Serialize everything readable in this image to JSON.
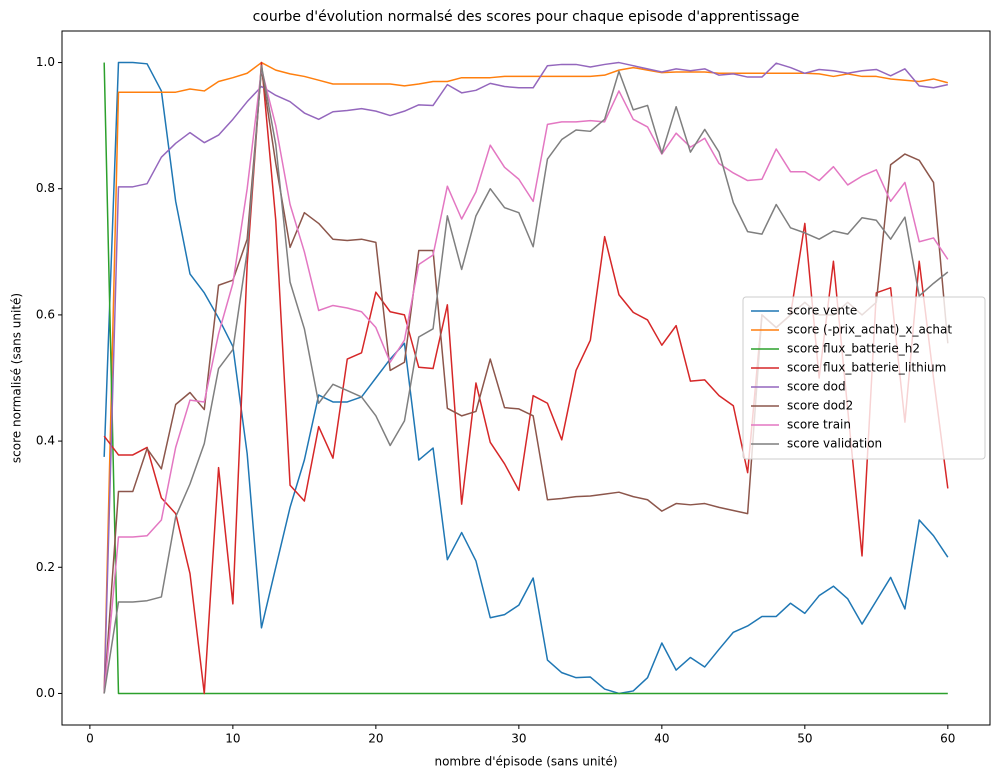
{
  "chart_data": {
    "type": "line",
    "title": "courbe d'évolution normalsé des scores pour chaque episode d'apprentissage",
    "xlabel": "nombre d'épisode (sans unité)",
    "ylabel": "score normalisé (sans unité)",
    "x": [
      1,
      2,
      3,
      4,
      5,
      6,
      7,
      8,
      9,
      10,
      11,
      12,
      13,
      14,
      15,
      16,
      17,
      18,
      19,
      20,
      21,
      22,
      23,
      24,
      25,
      26,
      27,
      28,
      29,
      30,
      31,
      32,
      33,
      34,
      35,
      36,
      37,
      38,
      39,
      40,
      41,
      42,
      43,
      44,
      45,
      46,
      47,
      48,
      49,
      50,
      51,
      52,
      53,
      54,
      55,
      56,
      57,
      58,
      59,
      60
    ],
    "xlim": [
      -1.95,
      62.95
    ],
    "xticks": [
      0,
      10,
      20,
      30,
      40,
      50,
      60
    ],
    "ylim": [
      -0.05,
      1.05
    ],
    "yticks": [
      {
        "value": 0,
        "label": "0.0"
      },
      0.2,
      0.4,
      0.6,
      0.8,
      {
        "value": 1,
        "label": "1.0"
      }
    ],
    "legend": "center right",
    "grid": false,
    "series": [
      {
        "name": "score vente",
        "color": "#1f77b4",
        "values": [
          0.375,
          1.0,
          1.0,
          0.998,
          0.955,
          0.78,
          0.665,
          0.635,
          0.595,
          0.55,
          0.38,
          0.104,
          0.2,
          0.295,
          0.37,
          0.473,
          0.462,
          0.462,
          0.47,
          0.5,
          0.53,
          0.555,
          0.37,
          0.389,
          0.212,
          0.255,
          0.21,
          0.12,
          0.125,
          0.14,
          0.183,
          0.053,
          0.033,
          0.025,
          0.026,
          0.007,
          0.0,
          0.004,
          0.025,
          0.08,
          0.037,
          0.057,
          0.042,
          0.07,
          0.097,
          0.107,
          0.122,
          0.122,
          0.143,
          0.127,
          0.155,
          0.17,
          0.15,
          0.11,
          0.147,
          0.184,
          0.134,
          0.275,
          0.25,
          0.216
        ]
      },
      {
        "name": "score (-prix_achat)_x_achat",
        "color": "#ff7f0e",
        "values": [
          0.0,
          0.953,
          0.953,
          0.953,
          0.953,
          0.953,
          0.958,
          0.955,
          0.97,
          0.976,
          0.983,
          1.0,
          0.988,
          0.982,
          0.978,
          0.972,
          0.966,
          0.966,
          0.966,
          0.966,
          0.966,
          0.963,
          0.966,
          0.97,
          0.97,
          0.976,
          0.976,
          0.976,
          0.978,
          0.978,
          0.978,
          0.978,
          0.978,
          0.978,
          0.978,
          0.98,
          0.988,
          0.992,
          0.988,
          0.984,
          0.985,
          0.985,
          0.985,
          0.983,
          0.983,
          0.983,
          0.983,
          0.983,
          0.983,
          0.983,
          0.982,
          0.978,
          0.982,
          0.978,
          0.978,
          0.974,
          0.972,
          0.97,
          0.974,
          0.968
        ]
      },
      {
        "name": "score flux_batterie_h2",
        "color": "#2ca02c",
        "values": [
          1.0,
          0,
          0,
          0,
          0,
          0,
          0,
          0,
          0,
          0,
          0,
          0,
          0,
          0,
          0,
          0,
          0,
          0,
          0,
          0,
          0,
          0,
          0,
          0,
          0,
          0,
          0,
          0,
          0,
          0,
          0,
          0,
          0,
          0,
          0,
          0,
          0,
          0,
          0,
          0,
          0,
          0,
          0,
          0,
          0,
          0,
          0,
          0,
          0,
          0,
          0,
          0,
          0,
          0,
          0,
          0,
          0,
          0,
          0,
          0
        ]
      },
      {
        "name": "score flux_batterie_lithium",
        "color": "#d62728",
        "values": [
          0.408,
          0.378,
          0.378,
          0.39,
          0.31,
          0.285,
          0.19,
          0.0,
          0.358,
          0.142,
          0.68,
          1.0,
          0.75,
          0.33,
          0.305,
          0.423,
          0.373,
          0.53,
          0.54,
          0.636,
          0.605,
          0.6,
          0.517,
          0.515,
          0.616,
          0.3,
          0.492,
          0.398,
          0.364,
          0.322,
          0.472,
          0.46,
          0.402,
          0.512,
          0.56,
          0.724,
          0.632,
          0.604,
          0.592,
          0.552,
          0.583,
          0.495,
          0.497,
          0.472,
          0.456,
          0.35,
          0.6,
          0.58,
          0.6,
          0.745,
          0.5,
          0.685,
          0.45,
          0.218,
          0.635,
          0.643,
          0.43,
          0.685,
          0.5,
          0.325
        ]
      },
      {
        "name": "score dod",
        "color": "#9467bd",
        "values": [
          0.0,
          0.803,
          0.803,
          0.808,
          0.85,
          0.872,
          0.889,
          0.873,
          0.885,
          0.91,
          0.938,
          0.962,
          0.948,
          0.938,
          0.92,
          0.91,
          0.922,
          0.924,
          0.927,
          0.923,
          0.916,
          0.923,
          0.933,
          0.932,
          0.965,
          0.952,
          0.956,
          0.967,
          0.962,
          0.96,
          0.96,
          0.995,
          0.997,
          0.997,
          0.993,
          0.997,
          1.0,
          0.995,
          0.99,
          0.985,
          0.99,
          0.987,
          0.99,
          0.98,
          0.982,
          0.977,
          0.977,
          0.999,
          0.992,
          0.983,
          0.989,
          0.987,
          0.983,
          0.987,
          0.989,
          0.979,
          0.99,
          0.963,
          0.96,
          0.965
        ]
      },
      {
        "name": "score dod2",
        "color": "#8c564b",
        "values": [
          0.0,
          0.32,
          0.32,
          0.388,
          0.356,
          0.458,
          0.477,
          0.45,
          0.647,
          0.655,
          0.72,
          0.99,
          0.84,
          0.707,
          0.762,
          0.745,
          0.72,
          0.718,
          0.72,
          0.715,
          0.512,
          0.525,
          0.702,
          0.702,
          0.452,
          0.44,
          0.447,
          0.53,
          0.453,
          0.451,
          0.44,
          0.307,
          0.309,
          0.312,
          0.313,
          0.316,
          0.319,
          0.312,
          0.307,
          0.289,
          0.301,
          0.299,
          0.301,
          0.295,
          0.29,
          0.285,
          0.6,
          0.58,
          0.6,
          0.62,
          0.6,
          0.6,
          0.62,
          0.6,
          0.62,
          0.838,
          0.855,
          0.845,
          0.81,
          0.555
        ]
      },
      {
        "name": "score train",
        "color": "#e377c2",
        "values": [
          0.0,
          0.248,
          0.248,
          0.25,
          0.275,
          0.39,
          0.465,
          0.462,
          0.57,
          0.65,
          0.8,
          0.99,
          0.9,
          0.775,
          0.7,
          0.607,
          0.615,
          0.611,
          0.605,
          0.58,
          0.525,
          0.56,
          0.68,
          0.695,
          0.804,
          0.752,
          0.795,
          0.869,
          0.834,
          0.815,
          0.78,
          0.902,
          0.906,
          0.906,
          0.908,
          0.906,
          0.955,
          0.91,
          0.898,
          0.855,
          0.888,
          0.866,
          0.88,
          0.84,
          0.825,
          0.813,
          0.815,
          0.863,
          0.827,
          0.827,
          0.813,
          0.835,
          0.806,
          0.82,
          0.83,
          0.78,
          0.81,
          0.716,
          0.722,
          0.688
        ]
      },
      {
        "name": "score validation",
        "color": "#7f7f7f",
        "values": [
          0.0,
          0.145,
          0.145,
          0.147,
          0.153,
          0.28,
          0.332,
          0.396,
          0.515,
          0.545,
          0.7,
          0.995,
          0.87,
          0.652,
          0.578,
          0.46,
          0.49,
          0.48,
          0.47,
          0.44,
          0.393,
          0.432,
          0.565,
          0.578,
          0.757,
          0.672,
          0.757,
          0.8,
          0.77,
          0.762,
          0.708,
          0.847,
          0.878,
          0.893,
          0.891,
          0.91,
          0.986,
          0.925,
          0.932,
          0.856,
          0.93,
          0.858,
          0.894,
          0.858,
          0.778,
          0.732,
          0.728,
          0.775,
          0.738,
          0.73,
          0.72,
          0.733,
          0.728,
          0.754,
          0.75,
          0.72,
          0.755,
          0.63,
          0.65,
          0.668
        ]
      }
    ]
  }
}
